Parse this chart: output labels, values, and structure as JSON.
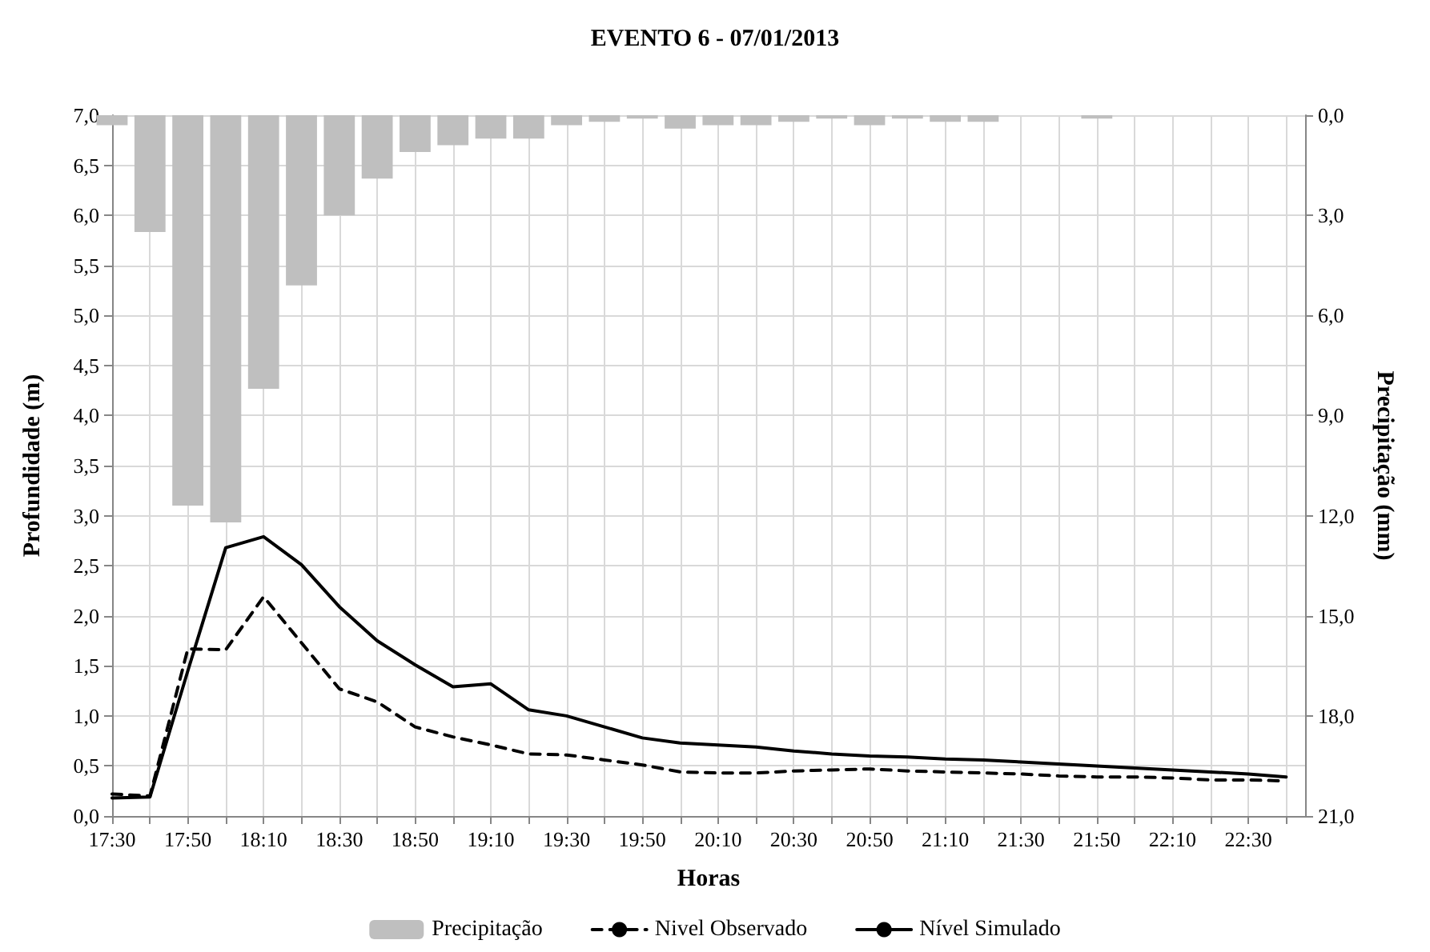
{
  "chart_data": {
    "type": "line",
    "title": "EVENTO 6 - 07/01/2013",
    "xlabel": "Horas",
    "ylabel": "Profundidade (m)",
    "y2label": "Precipitação (mm)",
    "x": [
      "2013-01-07T17:30",
      "2013-01-07T17:40",
      "2013-01-07T17:50",
      "2013-01-07T18:00",
      "2013-01-07T18:10",
      "2013-01-07T18:20",
      "2013-01-07T18:30",
      "2013-01-07T18:40",
      "2013-01-07T18:50",
      "2013-01-07T19:00",
      "2013-01-07T19:10",
      "2013-01-07T19:20",
      "2013-01-07T19:30",
      "2013-01-07T19:40",
      "2013-01-07T19:50",
      "2013-01-07T20:00",
      "2013-01-07T20:10",
      "2013-01-07T20:20",
      "2013-01-07T20:30",
      "2013-01-07T20:40",
      "2013-01-07T20:50",
      "2013-01-07T21:00",
      "2013-01-07T21:10",
      "2013-01-07T21:20",
      "2013-01-07T21:30",
      "2013-01-07T21:40",
      "2013-01-07T21:50",
      "2013-01-07T22:00",
      "2013-01-07T22:10",
      "2013-01-07T22:20",
      "2013-01-07T22:30",
      "2013-01-07T22:40"
    ],
    "series": [
      {
        "name": "Precipitação",
        "type": "bar",
        "axis": "y2",
        "color": "#bfbfbf",
        "values": [
          0.3,
          3.5,
          11.7,
          12.2,
          8.2,
          5.1,
          3.0,
          1.9,
          1.1,
          0.9,
          0.7,
          0.7,
          0.3,
          0.2,
          0.1,
          0.4,
          0.3,
          0.3,
          0.2,
          0.1,
          0.3,
          0.1,
          0.2,
          0.2,
          null,
          null,
          0.1,
          null,
          null,
          null,
          null,
          null
        ]
      },
      {
        "name": "Nivel Observado",
        "line_style": "dashed",
        "color": "#000000",
        "values": [
          0.22,
          0.2,
          1.67,
          1.66,
          2.19,
          1.73,
          1.27,
          1.14,
          0.89,
          0.79,
          0.71,
          0.62,
          0.61,
          0.56,
          0.51,
          0.44,
          0.43,
          0.43,
          0.45,
          0.46,
          0.47,
          0.45,
          0.44,
          0.43,
          0.42,
          0.4,
          0.39,
          0.39,
          0.38,
          0.36,
          0.36,
          0.35
        ]
      },
      {
        "name": "Nível Simulado",
        "line_style": "solid",
        "color": "#000000",
        "values": [
          0.18,
          0.19,
          1.45,
          2.68,
          2.79,
          2.51,
          2.09,
          1.75,
          1.51,
          1.29,
          1.32,
          1.06,
          1.0,
          0.89,
          0.78,
          0.73,
          0.71,
          0.69,
          0.65,
          0.62,
          0.6,
          0.59,
          0.57,
          0.56,
          0.54,
          0.52,
          0.5,
          0.48,
          0.46,
          0.44,
          0.42,
          0.39
        ]
      }
    ],
    "xlim": [
      "2013-01-07T17:30",
      "2013-01-07T22:45"
    ],
    "xticks": [
      {
        "value": "2013-01-07T17:30",
        "label": "17:30"
      },
      {
        "value": "2013-01-07T17:40",
        "label": null
      },
      {
        "value": "2013-01-07T17:50",
        "label": "17:50"
      },
      {
        "value": "2013-01-07T18:00",
        "label": null
      },
      {
        "value": "2013-01-07T18:10",
        "label": "18:10"
      },
      {
        "value": "2013-01-07T18:20",
        "label": null
      },
      {
        "value": "2013-01-07T18:30",
        "label": "18:30"
      },
      {
        "value": "2013-01-07T18:40",
        "label": null
      },
      {
        "value": "2013-01-07T18:50",
        "label": "18:50"
      },
      {
        "value": "2013-01-07T19:00",
        "label": null
      },
      {
        "value": "2013-01-07T19:10",
        "label": "19:10"
      },
      {
        "value": "2013-01-07T19:20",
        "label": null
      },
      {
        "value": "2013-01-07T19:30",
        "label": "19:30"
      },
      {
        "value": "2013-01-07T19:40",
        "label": null
      },
      {
        "value": "2013-01-07T19:50",
        "label": "19:50"
      },
      {
        "value": "2013-01-07T20:00",
        "label": null
      },
      {
        "value": "2013-01-07T20:10",
        "label": "20:10"
      },
      {
        "value": "2013-01-07T20:20",
        "label": null
      },
      {
        "value": "2013-01-07T20:30",
        "label": "20:30"
      },
      {
        "value": "2013-01-07T20:40",
        "label": null
      },
      {
        "value": "2013-01-07T20:50",
        "label": "20:50"
      },
      {
        "value": "2013-01-07T21:00",
        "label": null
      },
      {
        "value": "2013-01-07T21:10",
        "label": "21:10"
      },
      {
        "value": "2013-01-07T21:20",
        "label": null
      },
      {
        "value": "2013-01-07T21:30",
        "label": "21:30"
      },
      {
        "value": "2013-01-07T21:40",
        "label": null
      },
      {
        "value": "2013-01-07T21:50",
        "label": "21:50"
      },
      {
        "value": "2013-01-07T22:00",
        "label": null
      },
      {
        "value": "2013-01-07T22:10",
        "label": "22:10"
      },
      {
        "value": "2013-01-07T22:20",
        "label": null
      },
      {
        "value": "2013-01-07T22:30",
        "label": "22:30"
      },
      {
        "value": "2013-01-07T22:40",
        "label": null
      }
    ],
    "ylim": [
      0,
      7
    ],
    "yticks": [
      {
        "value": 0,
        "label": "0,0"
      },
      {
        "value": 0.5,
        "label": "0,5"
      },
      {
        "value": 1,
        "label": "1,0"
      },
      {
        "value": 1.5,
        "label": "1,5"
      },
      {
        "value": 2,
        "label": "2,0"
      },
      {
        "value": 2.5,
        "label": "2,5"
      },
      {
        "value": 3,
        "label": "3,0"
      },
      {
        "value": 3.5,
        "label": "3,5"
      },
      {
        "value": 4,
        "label": "4,0"
      },
      {
        "value": 4.5,
        "label": "4,5"
      },
      {
        "value": 5,
        "label": "5,0"
      },
      {
        "value": 5.5,
        "label": "5,5"
      },
      {
        "value": 6,
        "label": "6,0"
      },
      {
        "value": 6.5,
        "label": "6,5"
      },
      {
        "value": 7,
        "label": "7,0"
      }
    ],
    "y2lim": [
      21,
      0
    ],
    "y2ticks": [
      {
        "value": 0,
        "label": "0,0"
      },
      {
        "value": 3,
        "label": "3,0"
      },
      {
        "value": 6,
        "label": "6,0"
      },
      {
        "value": 9,
        "label": "9,0"
      },
      {
        "value": 12,
        "label": "12,0"
      },
      {
        "value": 15,
        "label": "15,0"
      },
      {
        "value": 18,
        "label": "18,0"
      },
      {
        "value": 21,
        "label": "21,0"
      }
    ],
    "grid": true,
    "legend": "bottom",
    "marker": "none"
  }
}
